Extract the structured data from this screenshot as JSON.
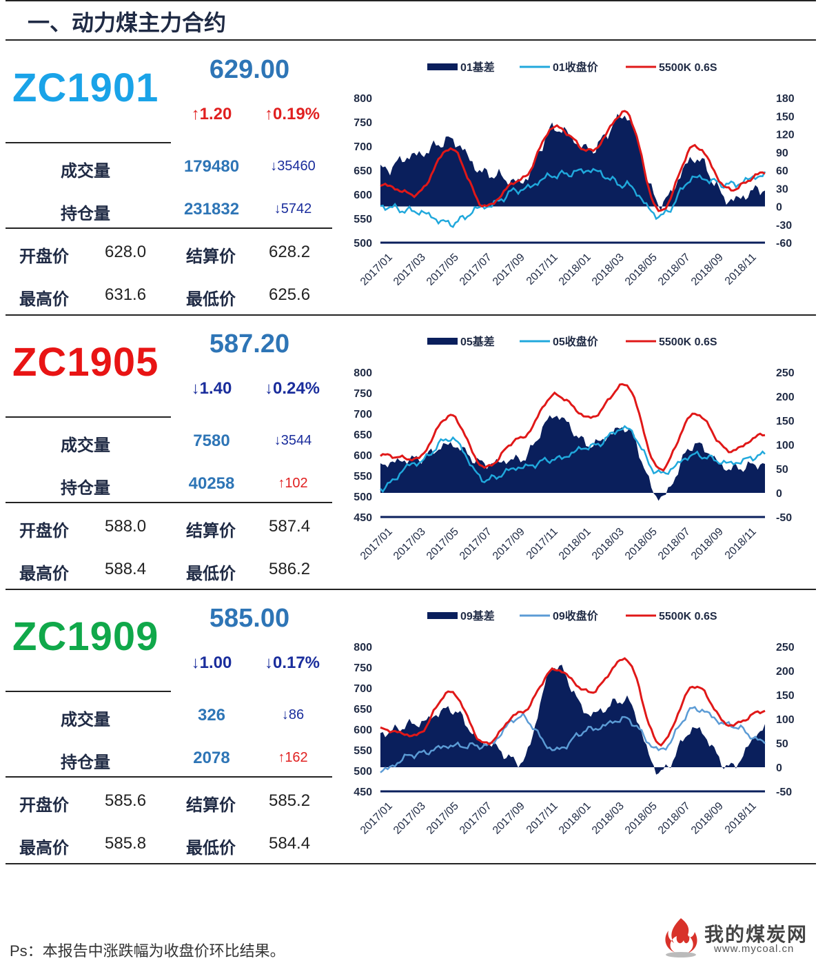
{
  "title": "一、动力煤主力合约",
  "labels": {
    "volume": "成交量",
    "open_interest": "持仓量",
    "open": "开盘价",
    "settle": "结算价",
    "high": "最高价",
    "low": "最低价"
  },
  "contracts": [
    {
      "code": "ZC1901",
      "code_color": "#1aa3e8",
      "price": "629.00",
      "change": "↑1.20",
      "change_pct": "↑0.19%",
      "change_dir": "up",
      "volume": "179480",
      "volume_delta": "↓35460",
      "volume_dir": "down",
      "open_interest": "231832",
      "oi_delta": "↓5742",
      "oi_dir": "down",
      "open": "628.0",
      "settle": "628.2",
      "high": "631.6",
      "low": "625.6"
    },
    {
      "code": "ZC1905",
      "code_color": "#e81414",
      "price": "587.20",
      "change": "↓1.40",
      "change_pct": "↓0.24%",
      "change_dir": "down",
      "volume": "7580",
      "volume_delta": "↓3544",
      "volume_dir": "down",
      "open_interest": "40258",
      "oi_delta": "↑102",
      "oi_dir": "up",
      "open": "588.0",
      "settle": "587.4",
      "high": "588.4",
      "low": "586.2"
    },
    {
      "code": "ZC1909",
      "code_color": "#10a84a",
      "price": "585.00",
      "change": "↓1.00",
      "change_pct": "↓0.17%",
      "change_dir": "down",
      "volume": "326",
      "volume_delta": "↓86",
      "volume_dir": "down",
      "open_interest": "2078",
      "oi_delta": "↑162",
      "oi_dir": "up",
      "open": "585.6",
      "settle": "585.2",
      "high": "585.8",
      "low": "584.4"
    }
  ],
  "chart_data": [
    {
      "type": "line",
      "x": [
        "2017/01",
        "2017/03",
        "2017/05",
        "2017/07",
        "2017/09",
        "2017/11",
        "2018/01",
        "2018/03",
        "2018/05",
        "2018/07",
        "2018/09",
        "2018/11"
      ],
      "legend_placement": "top",
      "series_colors": [
        "#0a1f5c",
        "#20a8dc",
        "#e01818"
      ],
      "series": [
        {
          "name": "01基差",
          "axis": "right",
          "kind": "area",
          "values": [
            60,
            85,
            110,
            55,
            40,
            130,
            95,
            150,
            5,
            80,
            10,
            30
          ]
        },
        {
          "name": "01收盘价",
          "axis": "left",
          "kind": "line",
          "values": [
            575,
            565,
            540,
            575,
            610,
            640,
            650,
            620,
            555,
            635,
            620,
            640
          ]
        },
        {
          "name": "5500K 0.6S",
          "axis": "right_price",
          "kind": "line",
          "values": [
            620,
            600,
            695,
            575,
            630,
            740,
            690,
            770,
            565,
            700,
            610,
            645
          ]
        }
      ],
      "y_left": [
        500,
        550,
        600,
        650,
        700,
        750,
        800
      ],
      "y_right": [
        -60,
        -30,
        0,
        30,
        60,
        90,
        120,
        150,
        180
      ]
    },
    {
      "type": "line",
      "x": [
        "2017/01",
        "2017/03",
        "2017/05",
        "2017/07",
        "2017/09",
        "2017/11",
        "2018/01",
        "2018/03",
        "2018/05",
        "2018/07",
        "2018/09",
        "2018/11"
      ],
      "legend_placement": "top",
      "series_colors": [
        "#0a1f5c",
        "#20a8dc",
        "#e01818"
      ],
      "series": [
        {
          "name": "05基差",
          "axis": "right",
          "kind": "area",
          "values": [
            60,
            70,
            100,
            60,
            70,
            160,
            100,
            135,
            -10,
            100,
            50,
            60
          ]
        },
        {
          "name": "05收盘价",
          "axis": "left",
          "kind": "line",
          "values": [
            520,
            580,
            640,
            540,
            570,
            590,
            620,
            665,
            555,
            600,
            580,
            600
          ]
        },
        {
          "name": "5500K 0.6S",
          "axis": "right_price",
          "kind": "line",
          "values": [
            600,
            590,
            695,
            570,
            640,
            745,
            690,
            770,
            565,
            700,
            610,
            650
          ]
        }
      ],
      "y_left": [
        450,
        500,
        550,
        600,
        650,
        700,
        750,
        800
      ],
      "y_right": [
        -50,
        0,
        50,
        100,
        150,
        200,
        250
      ]
    },
    {
      "type": "line",
      "x": [
        "2017/01",
        "2017/03",
        "2017/05",
        "2017/07",
        "2017/09",
        "2017/11",
        "2018/01",
        "2018/03",
        "2018/05",
        "2018/07",
        "2018/09",
        "2018/11"
      ],
      "legend_placement": "top",
      "series_colors": [
        "#0a1f5c",
        "#5b9bd5",
        "#e01818"
      ],
      "series": [
        {
          "name": "09基差",
          "axis": "right",
          "kind": "area",
          "values": [
            70,
            90,
            120,
            50,
            10,
            210,
            110,
            140,
            -10,
            80,
            0,
            80
          ]
        },
        {
          "name": "09收盘价",
          "axis": "left",
          "kind": "line",
          "values": [
            500,
            540,
            560,
            560,
            630,
            550,
            600,
            625,
            550,
            650,
            610,
            570
          ]
        },
        {
          "name": "5500K 0.6S",
          "axis": "right_price",
          "kind": "line",
          "values": [
            600,
            585,
            690,
            565,
            640,
            745,
            690,
            770,
            565,
            705,
            610,
            645
          ]
        }
      ],
      "y_left": [
        450,
        500,
        550,
        600,
        650,
        700,
        750,
        800
      ],
      "y_right": [
        -50,
        0,
        50,
        100,
        150,
        200,
        250
      ]
    }
  ],
  "footnote": "Ps：本报告中涨跌幅为收盘价环比结果。",
  "logo": {
    "name": "我的煤炭网",
    "url_text": "www.mycoal.cn"
  }
}
